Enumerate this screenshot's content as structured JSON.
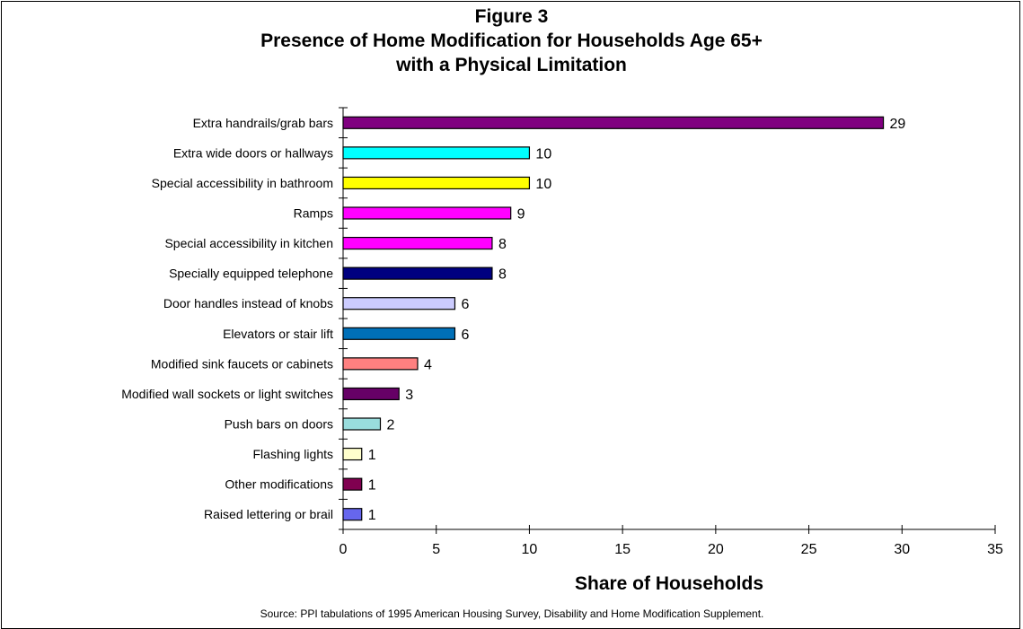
{
  "chart_data": {
    "type": "bar",
    "orientation": "horizontal",
    "title_lines": [
      "Figure 3",
      "Presence of Home Modification for Households Age 65+",
      "with a Physical Limitation"
    ],
    "xlabel": "Share of Households",
    "xlim": [
      0,
      35
    ],
    "xticks": [
      0,
      5,
      10,
      15,
      20,
      25,
      30,
      35
    ],
    "grid": false,
    "legend": "none",
    "categories": [
      "Extra handrails/grab bars",
      "Extra wide doors or hallways",
      "Special accessibility in bathroom",
      "Ramps",
      "Special accessibility in kitchen",
      "Specially equipped telephone",
      "Door handles instead of knobs",
      "Elevators or stair lift",
      "Modified sink faucets or cabinets",
      "Modified wall sockets or light switches",
      "Push bars on doors",
      "Flashing lights",
      "Other modifications",
      "Raised lettering or brail"
    ],
    "values": [
      29,
      10,
      10,
      9,
      8,
      8,
      6,
      6,
      4,
      3,
      2,
      1,
      1,
      1
    ],
    "colors": [
      "#800080",
      "#00ffff",
      "#ffff00",
      "#ff00ff",
      "#ff00ff",
      "#000080",
      "#ccccff",
      "#0070b8",
      "#ff8080",
      "#660066",
      "#99dddd",
      "#ffffcc",
      "#800050",
      "#6666ee"
    ],
    "source": "Source:  PPI  tabulations of  1995  American Housing Survey,  Disability and Home Modification Supplement."
  }
}
